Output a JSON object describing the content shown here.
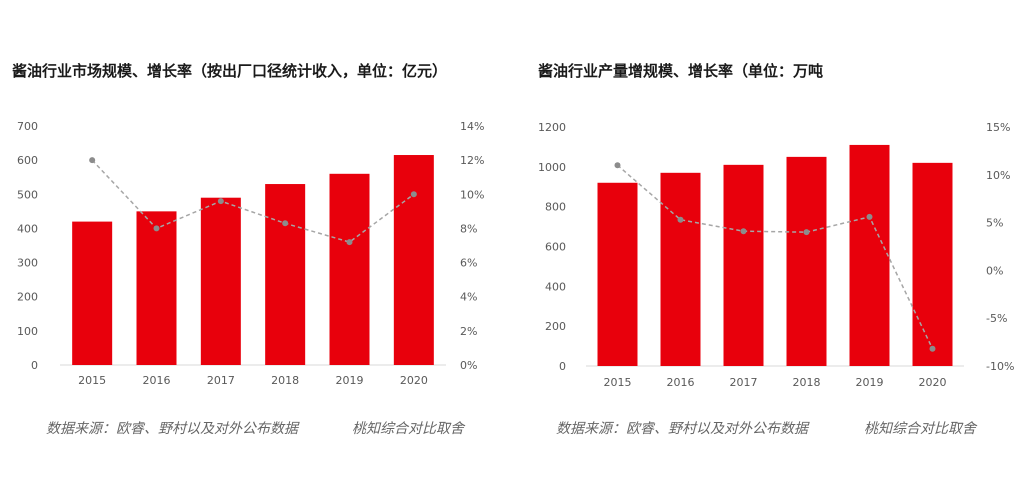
{
  "colors": {
    "bar": "#e8000c",
    "line": "#a6a6a6",
    "text": "#1a1a1a",
    "axis": "#595959",
    "note": "#666666"
  },
  "chart_data": [
    {
      "type": "bar",
      "title": "酱油行业市场规模、增长率（按出厂口径统计收入，单位：亿元）",
      "categories": [
        "2015",
        "2016",
        "2017",
        "2018",
        "2019",
        "2020"
      ],
      "series": [
        {
          "type": "bar",
          "values": [
            420,
            450,
            490,
            530,
            560,
            615
          ]
        },
        {
          "type": "line",
          "axis": "right",
          "values": [
            12.0,
            8.0,
            9.6,
            8.3,
            7.2,
            10.0
          ]
        }
      ],
      "ylim": [
        0,
        700
      ],
      "yticks": [
        "0",
        "100",
        "200",
        "300",
        "400",
        "500",
        "600",
        "700"
      ],
      "y2lim": [
        0,
        14
      ],
      "y2ticks": [
        "0%",
        "2%",
        "4%",
        "6%",
        "8%",
        "10%",
        "12%",
        "14%"
      ],
      "grid": false,
      "source_note": "数据来源：欧睿、野村以及对外公布数据",
      "source_credit": "桃知综合对比取舍"
    },
    {
      "type": "bar",
      "title": "酱油行业产量增规模、增长率（单位：万吨",
      "categories": [
        "2015",
        "2016",
        "2017",
        "2018",
        "2019",
        "2020"
      ],
      "series": [
        {
          "type": "bar",
          "values": [
            920,
            970,
            1010,
            1050,
            1110,
            1020
          ]
        },
        {
          "type": "line",
          "axis": "right",
          "values": [
            11.0,
            5.3,
            4.1,
            4.0,
            5.6,
            -8.2
          ]
        }
      ],
      "ylim": [
        0,
        1200
      ],
      "yticks": [
        "0",
        "200",
        "400",
        "600",
        "800",
        "1000",
        "1200"
      ],
      "y2lim": [
        -10,
        15
      ],
      "y2ticks": [
        "-10%",
        "-5%",
        "0%",
        "5%",
        "10%",
        "15%"
      ],
      "grid": false,
      "source_note": "数据来源：欧睿、野村以及对外公布数据",
      "source_credit": "桃知综合对比取舍"
    }
  ]
}
